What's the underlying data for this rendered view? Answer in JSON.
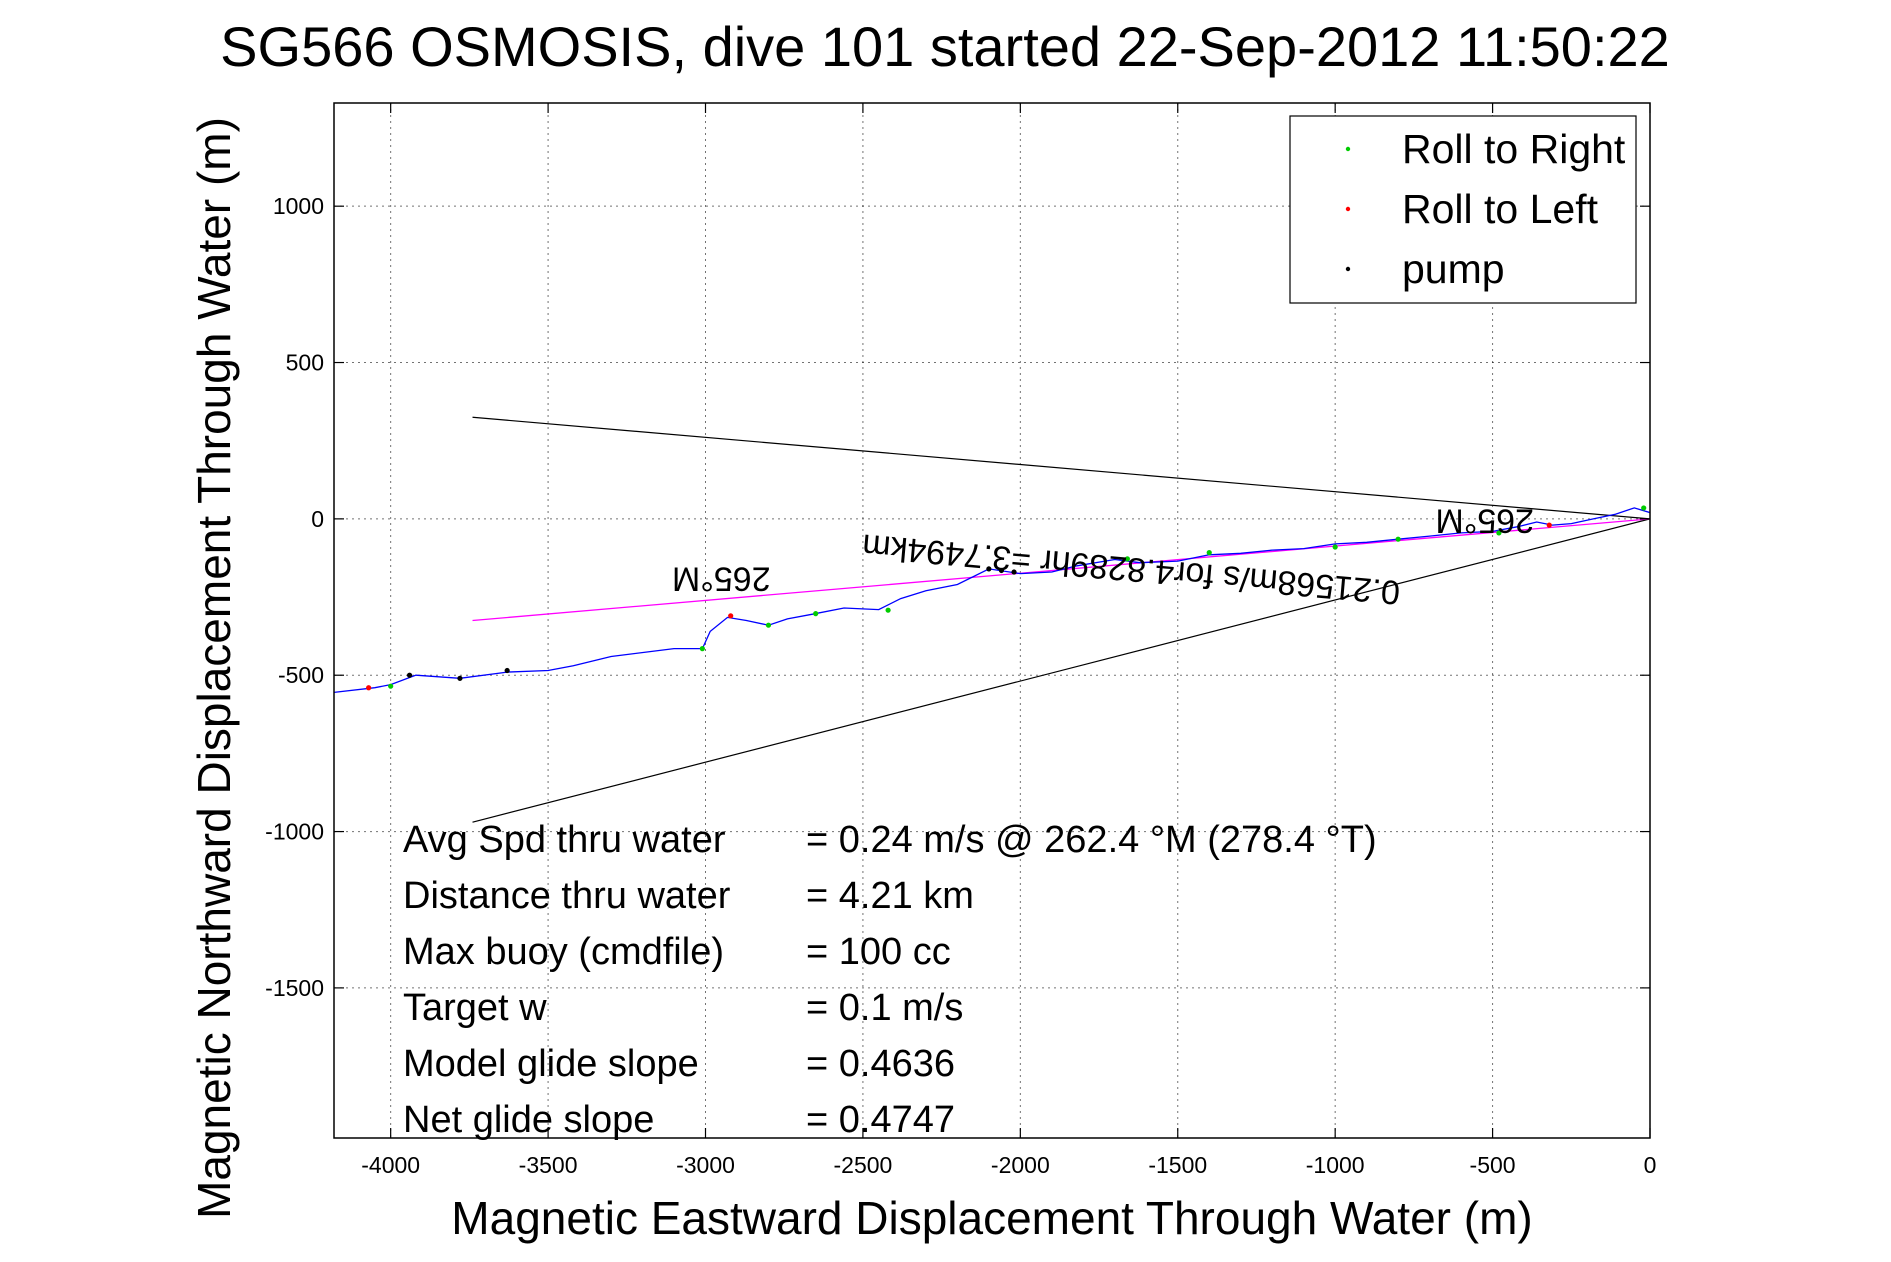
{
  "chart_data": {
    "type": "line",
    "title": "SG566 OSMOSIS, dive 101 started 22-Sep-2012 11:50:22",
    "xlabel": "Magnetic Eastward Displacement Through Water (m)",
    "ylabel": "Magnetic Northward Displacement Through Water (m)",
    "xlim": [
      -4180,
      0
    ],
    "ylim": [
      -1980,
      1330
    ],
    "xticks": [
      -4000,
      -3500,
      -3000,
      -2500,
      -2000,
      -1500,
      -1000,
      -500,
      0
    ],
    "yticks": [
      1000,
      500,
      0,
      -500,
      -1000,
      -1500
    ],
    "xtick_labels": [
      "-4000",
      "-3500",
      "-3000",
      "-2500",
      "-2000",
      "-1500",
      "-1000",
      "-500",
      "0"
    ],
    "ytick_labels": [
      "1000",
      "500",
      "0",
      "-500",
      "-1000",
      "-1500"
    ],
    "grid": true,
    "legend_position": "top-right",
    "legend": [
      {
        "label": "Roll to Right",
        "color": "#00cc00"
      },
      {
        "label": "Roll to Left",
        "color": "#ff0000"
      },
      {
        "label": "pump",
        "color": "#000000"
      }
    ],
    "track": {
      "color": "#0000ff",
      "x": [
        -4180,
        -4050,
        -4000,
        -3920,
        -3780,
        -3630,
        -3500,
        -3420,
        -3300,
        -3100,
        -3010,
        -2985,
        -2930,
        -2870,
        -2800,
        -2740,
        -2660,
        -2560,
        -2450,
        -2380,
        -2300,
        -2200,
        -2100,
        -2000,
        -1900,
        -1820,
        -1700,
        -1620,
        -1500,
        -1400,
        -1300,
        -1200,
        -1100,
        -1000,
        -900,
        -800,
        -700,
        -600,
        -500,
        -420,
        -360,
        -310,
        -250,
        -180,
        -110,
        -50,
        0
      ],
      "y": [
        -555,
        -540,
        -530,
        -500,
        -510,
        -490,
        -485,
        -470,
        -440,
        -415,
        -415,
        -360,
        -315,
        -325,
        -340,
        -320,
        -305,
        -285,
        -290,
        -255,
        -230,
        -210,
        -160,
        -175,
        -170,
        -150,
        -130,
        -140,
        -135,
        -115,
        -110,
        -100,
        -95,
        -80,
        -75,
        -65,
        -55,
        -45,
        -40,
        -25,
        -10,
        -20,
        -15,
        0,
        15,
        35,
        20
      ]
    },
    "roll_right_points": {
      "x": [
        -4000,
        -3010,
        -2800,
        -2650,
        -2420,
        -1660,
        -1400,
        -1000,
        -800,
        -480,
        -20
      ],
      "y": [
        -535,
        -415,
        -340,
        -303,
        -292,
        -128,
        -108,
        -90,
        -65,
        -45,
        35
      ]
    },
    "roll_left_points": {
      "x": [
        -4070,
        -2920,
        -320
      ],
      "y": [
        -540,
        -310,
        -20
      ]
    },
    "pump_points": {
      "x": [
        -3940,
        -3780,
        -3630,
        -2100,
        -2060,
        -2020
      ],
      "y": [
        -500,
        -510,
        -485,
        -160,
        -165,
        -170
      ]
    },
    "heading_line": {
      "color": "#ff00ff",
      "x": [
        -3740,
        0
      ],
      "y": [
        -325,
        0
      ]
    },
    "cone_lines": [
      {
        "color": "#000000",
        "x": [
          -3740,
          0
        ],
        "y": [
          325,
          0
        ]
      },
      {
        "color": "#000000",
        "x": [
          -3740,
          0
        ],
        "y": [
          -970,
          0
        ]
      }
    ],
    "annotations": [
      {
        "text": "265°M",
        "x": -2950,
        "y": -155,
        "rotate": 180
      },
      {
        "text": "265°M",
        "x": -525,
        "y": 30,
        "rotate": 180
      },
      {
        "text": "0.21568m/s for4.8289hr =3.7494km",
        "x": -1645,
        "y": -125,
        "rotate": 185
      }
    ],
    "stats": [
      {
        "label": "Avg Spd thru water",
        "value": "=  0.24 m/s @ 262.4 °M (278.4 °T)"
      },
      {
        "label": "Distance thru water",
        "value": "=  4.21 km"
      },
      {
        "label": "Max buoy (cmdfile)",
        "value": "= 100 cc"
      },
      {
        "label": "Target w",
        "value": "= 0.1 m/s"
      },
      {
        "label": "Model glide slope",
        "value": "= 0.4636"
      },
      {
        "label": "Net glide slope",
        "value": "= 0.4747"
      }
    ]
  }
}
